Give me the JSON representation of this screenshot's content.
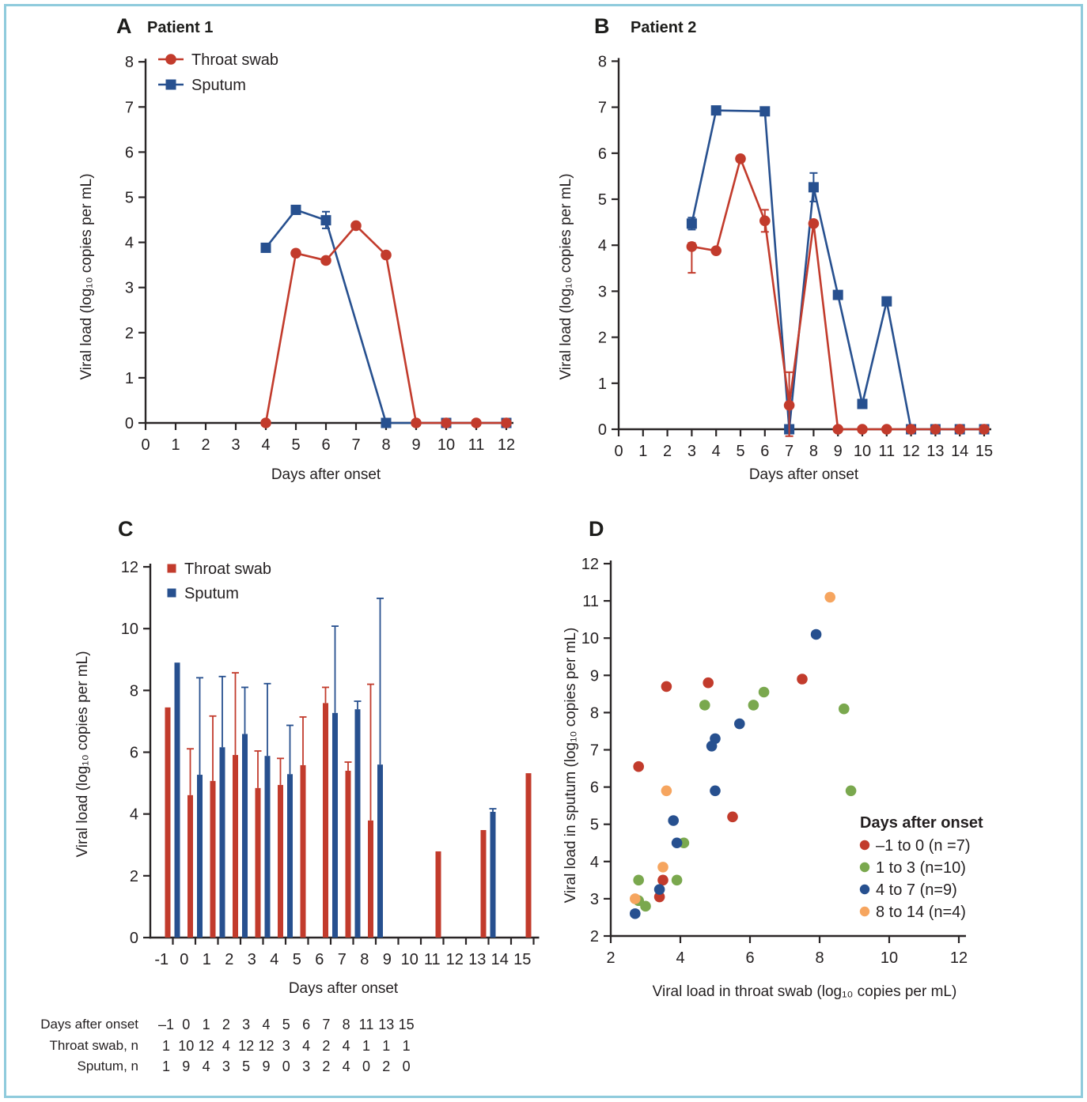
{
  "colors": {
    "throat": "#c23b2c",
    "sputum": "#27508f",
    "green": "#7aa84e",
    "orange": "#f6a55f",
    "axis": "#2a2627",
    "text": "#231f20",
    "frame_border": "#8fcbdc"
  },
  "chart_data": [
    {
      "panel": "A",
      "type": "line",
      "title": "Patient 1",
      "xlabel": "Days after onset",
      "ylabel": "Viral load (log₁₀ copies per mL)",
      "xlim": [
        0,
        12
      ],
      "xticks": [
        0,
        1,
        2,
        3,
        4,
        5,
        6,
        7,
        8,
        9,
        10,
        11,
        12
      ],
      "ylim": [
        0,
        8
      ],
      "yticks": [
        0,
        1,
        2,
        3,
        4,
        5,
        6,
        7,
        8
      ],
      "legend_position": "top-left",
      "series": [
        {
          "name": "Throat swab",
          "color": "#c23b2c",
          "marker": "circle",
          "points": [
            [
              4,
              0
            ],
            [
              5,
              3.76
            ],
            [
              6,
              3.6
            ],
            [
              7,
              4.37
            ],
            [
              8,
              3.72
            ],
            [
              9,
              0
            ],
            [
              10,
              0
            ],
            [
              11,
              0
            ],
            [
              12,
              0
            ]
          ]
        },
        {
          "name": "Sputum",
          "color": "#27508f",
          "marker": "square",
          "points": [
            [
              4,
              3.88
            ],
            [
              5,
              4.72
            ],
            [
              6,
              4.49,
              0.19,
              0.18
            ],
            [
              8,
              0
            ],
            [
              10,
              0
            ],
            [
              12,
              0
            ]
          ]
        }
      ]
    },
    {
      "panel": "B",
      "type": "line",
      "title": "Patient 2",
      "xlabel": "Days after onset",
      "ylabel": "Viral load (log₁₀ copies per mL)",
      "xlim": [
        0,
        15
      ],
      "xticks": [
        0,
        1,
        2,
        3,
        4,
        5,
        6,
        7,
        8,
        9,
        10,
        11,
        12,
        13,
        14,
        15
      ],
      "ylim": [
        0,
        8
      ],
      "yticks": [
        0,
        1,
        2,
        3,
        4,
        5,
        6,
        7,
        8
      ],
      "legend_position": "none",
      "series": [
        {
          "name": "Throat swab",
          "color": "#c23b2c",
          "marker": "circle",
          "points": [
            [
              3,
              3.97,
              0.08,
              0.57
            ],
            [
              4,
              3.88
            ],
            [
              5,
              5.88
            ],
            [
              6,
              4.53,
              0.24,
              0.24
            ],
            [
              7,
              0.52,
              0.72,
              0.67
            ],
            [
              8,
              4.47
            ],
            [
              9,
              0
            ],
            [
              10,
              0
            ],
            [
              11,
              0
            ],
            [
              12,
              0
            ],
            [
              13,
              0
            ],
            [
              14,
              0
            ],
            [
              15,
              0
            ]
          ]
        },
        {
          "name": "Sputum",
          "color": "#27508f",
          "marker": "square",
          "points": [
            [
              3,
              4.47,
              0.13,
              0.13
            ],
            [
              4,
              6.93
            ],
            [
              6,
              6.91
            ],
            [
              7,
              0
            ],
            [
              8,
              5.26,
              0.31,
              0.31
            ],
            [
              9,
              2.92
            ],
            [
              10,
              0.55
            ],
            [
              11,
              2.78
            ],
            [
              12,
              0
            ],
            [
              13,
              0
            ],
            [
              14,
              0
            ],
            [
              15,
              0
            ]
          ]
        }
      ]
    },
    {
      "panel": "C",
      "type": "bar",
      "title": "",
      "xlabel": "Days after onset",
      "ylabel": "Viral load (log₁₀ copies per mL)",
      "xtick_labels": [
        "-1",
        "0",
        "1",
        "2",
        "3",
        "4",
        "5",
        "6",
        "7",
        "8",
        "9",
        "10",
        "11",
        "12",
        "13",
        "14",
        "15"
      ],
      "ylim": [
        0,
        12
      ],
      "yticks": [
        0,
        2,
        4,
        6,
        8,
        10,
        12
      ],
      "legend": [
        {
          "label": "Throat swab",
          "color": "#c23b2c"
        },
        {
          "label": "Sputum",
          "color": "#27508f"
        }
      ],
      "bars": [
        {
          "day": -1,
          "throat": {
            "v": 7.45
          },
          "sputum": {
            "v": 8.9
          }
        },
        {
          "day": 0,
          "throat": {
            "v": 4.61,
            "hi": 6.11
          },
          "sputum": {
            "v": 5.27,
            "hi": 8.41
          }
        },
        {
          "day": 1,
          "throat": {
            "v": 5.07,
            "hi": 7.17
          },
          "sputum": {
            "v": 6.16,
            "hi": 8.45
          }
        },
        {
          "day": 2,
          "throat": {
            "v": 5.91,
            "hi": 8.57
          },
          "sputum": {
            "v": 6.59,
            "hi": 8.1
          }
        },
        {
          "day": 3,
          "throat": {
            "v": 4.84,
            "hi": 6.04
          },
          "sputum": {
            "v": 5.88,
            "hi": 8.22
          }
        },
        {
          "day": 4,
          "throat": {
            "v": 4.94,
            "hi": 5.8
          },
          "sputum": {
            "v": 5.29,
            "hi": 6.87
          }
        },
        {
          "day": 5,
          "throat": {
            "v": 5.58,
            "hi": 7.14
          }
        },
        {
          "day": 6,
          "throat": {
            "v": 7.59,
            "hi": 8.1
          },
          "sputum": {
            "v": 7.27,
            "hi": 10.08
          }
        },
        {
          "day": 7,
          "throat": {
            "v": 5.4,
            "hi": 5.68
          },
          "sputum": {
            "v": 7.39,
            "hi": 7.65
          }
        },
        {
          "day": 8,
          "throat": {
            "v": 3.79,
            "hi": 8.2
          },
          "sputum": {
            "v": 5.6,
            "hi": 10.98
          }
        },
        {
          "day": 11,
          "throat": {
            "v": 2.79
          }
        },
        {
          "day": 13,
          "throat": {
            "v": 3.48
          },
          "sputum": {
            "v": 4.07,
            "hi": 4.17
          }
        },
        {
          "day": 15,
          "throat": {
            "v": 5.32
          }
        }
      ]
    },
    {
      "panel": "D",
      "type": "scatter",
      "title": "",
      "xlabel": "Viral load in throat swab (log₁₀ copies per mL)",
      "ylabel": "Viral load in sputum (log₁₀ copies per mL)",
      "xlim": [
        2,
        12
      ],
      "xticks": [
        2,
        4,
        6,
        8,
        10,
        12
      ],
      "ylim": [
        2,
        12
      ],
      "yticks": [
        2,
        3,
        4,
        5,
        6,
        7,
        8,
        9,
        10,
        11,
        12
      ],
      "legend_title": "Days after onset",
      "groups": [
        {
          "label": "–1 to 0 (n =7)",
          "color": "#c23b2c",
          "points": [
            [
              3.6,
              8.7
            ],
            [
              4.8,
              8.8
            ],
            [
              7.5,
              8.9
            ],
            [
              2.8,
              6.55
            ],
            [
              5.5,
              5.2
            ],
            [
              3.5,
              3.5
            ],
            [
              3.4,
              3.05
            ]
          ]
        },
        {
          "label": "1 to 3 (n=10)",
          "color": "#7aa84e",
          "points": [
            [
              4.7,
              8.2
            ],
            [
              6.1,
              8.2
            ],
            [
              6.4,
              8.55
            ],
            [
              8.7,
              8.1
            ],
            [
              8.9,
              5.9
            ],
            [
              4.1,
              4.5
            ],
            [
              2.8,
              3.5
            ],
            [
              3.9,
              3.5
            ],
            [
              2.8,
              2.95
            ],
            [
              3.0,
              2.8
            ]
          ]
        },
        {
          "label": "4 to 7 (n=9)",
          "color": "#27508f",
          "points": [
            [
              7.9,
              10.1
            ],
            [
              5.7,
              7.7
            ],
            [
              5.0,
              7.3
            ],
            [
              4.9,
              7.1
            ],
            [
              5.0,
              5.9
            ],
            [
              3.8,
              5.1
            ],
            [
              3.9,
              4.5
            ],
            [
              3.4,
              3.25
            ],
            [
              2.7,
              2.6
            ]
          ]
        },
        {
          "label": "8 to 14 (n=4)",
          "color": "#f6a55f",
          "points": [
            [
              8.3,
              11.1
            ],
            [
              3.6,
              5.9
            ],
            [
              3.5,
              3.85
            ],
            [
              2.7,
              3.0
            ]
          ]
        }
      ]
    }
  ],
  "table": {
    "rows": [
      {
        "label": "Days after onset",
        "values": [
          "–1",
          "0",
          "1",
          "2",
          "3",
          "4",
          "5",
          "6",
          "7",
          "8",
          "11",
          "13",
          "15"
        ]
      },
      {
        "label": "Throat swab, n",
        "values": [
          "1",
          "10",
          "12",
          "4",
          "12",
          "12",
          "3",
          "4",
          "2",
          "4",
          "1",
          "1",
          "1"
        ]
      },
      {
        "label": "Sputum, n",
        "values": [
          "1",
          "9",
          "4",
          "3",
          "5",
          "9",
          "0",
          "3",
          "2",
          "4",
          "0",
          "2",
          "0"
        ]
      }
    ]
  }
}
